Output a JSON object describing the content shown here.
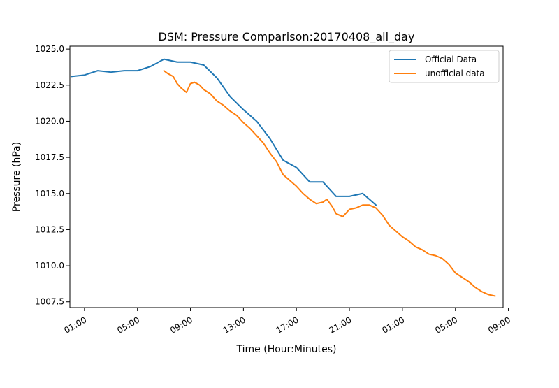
{
  "chart_data": {
    "type": "line",
    "title": "DSM: Pressure Comparison:20170408_all_day",
    "xlabel": "Time (Hour:Minutes)",
    "ylabel": "Pressure (hPa)",
    "xlim_hours": [
      -0.1,
      32.6
    ],
    "ylim": [
      1007.1,
      1025.2
    ],
    "x_ticks": [
      {
        "hour": 1,
        "label": "01:00"
      },
      {
        "hour": 5,
        "label": "05:00"
      },
      {
        "hour": 9,
        "label": "09:00"
      },
      {
        "hour": 13,
        "label": "13:00"
      },
      {
        "hour": 17,
        "label": "17:00"
      },
      {
        "hour": 21,
        "label": "21:00"
      },
      {
        "hour": 25,
        "label": "01:00"
      },
      {
        "hour": 29,
        "label": "05:00"
      },
      {
        "hour": 33,
        "label": "09:00"
      }
    ],
    "y_ticks": [
      {
        "value": 1025.0,
        "label": "1025.0"
      },
      {
        "value": 1022.5,
        "label": "1022.5"
      },
      {
        "value": 1020.0,
        "label": "1020.0"
      },
      {
        "value": 1017.5,
        "label": "1017.5"
      },
      {
        "value": 1015.0,
        "label": "1015.0"
      },
      {
        "value": 1012.5,
        "label": "1012.5"
      },
      {
        "value": 1010.0,
        "label": "1010.0"
      },
      {
        "value": 1007.5,
        "label": "1007.5"
      }
    ],
    "legend_position": "upper right",
    "grid": false,
    "series": [
      {
        "name": "Official Data",
        "color": "#1f77b4",
        "x": [
          0,
          1,
          2,
          3,
          4,
          5,
          6,
          7,
          8,
          9,
          10,
          11,
          12,
          13,
          14,
          15,
          16,
          17,
          18,
          19,
          20,
          21,
          22,
          23,
          24
        ],
        "y": [
          1023.1,
          1023.2,
          1023.5,
          1023.4,
          1023.5,
          1023.5,
          1023.8,
          1024.3,
          1024.1,
          1024.1,
          1023.9,
          1023.0,
          1021.7,
          1020.8,
          1020.0,
          1018.8,
          1017.3,
          1016.8,
          1015.8,
          1015.8,
          1014.8,
          1014.8,
          1015.0,
          1014.2,
          null
        ]
      },
      {
        "name": "unofficial data",
        "color": "#ff7f0e",
        "x": [
          7.0,
          7.3,
          7.7,
          8.0,
          8.3,
          8.7,
          9.0,
          9.3,
          9.7,
          10.0,
          10.5,
          11.0,
          11.5,
          12.0,
          12.5,
          13.0,
          13.5,
          14.0,
          14.5,
          15.0,
          15.5,
          16.0,
          16.5,
          17.0,
          17.5,
          18.0,
          18.5,
          19.0,
          19.3,
          19.7,
          20.0,
          20.5,
          21.0,
          21.5,
          22.0,
          22.5,
          23.0,
          23.5,
          24.0,
          24.5,
          25.0,
          25.5,
          26.0,
          26.5,
          27.0,
          27.5,
          28.0,
          28.5,
          29.0,
          29.5,
          30.0,
          30.5,
          31.0,
          31.5,
          32.0
        ],
        "y": [
          1023.5,
          1023.3,
          1023.1,
          1022.6,
          1022.3,
          1022.0,
          1022.6,
          1022.7,
          1022.5,
          1022.2,
          1021.9,
          1021.4,
          1021.1,
          1020.7,
          1020.4,
          1019.9,
          1019.5,
          1019.0,
          1018.5,
          1017.8,
          1017.2,
          1016.3,
          1015.9,
          1015.5,
          1015.0,
          1014.6,
          1014.3,
          1014.4,
          1014.6,
          1014.1,
          1013.6,
          1013.4,
          1013.9,
          1014.0,
          1014.2,
          1014.2,
          1014.0,
          1013.5,
          1012.8,
          1012.4,
          1012.0,
          1011.7,
          1011.3,
          1011.1,
          1010.8,
          1010.7,
          1010.5,
          1010.1,
          1009.5,
          1009.2,
          1008.9,
          1008.5,
          1008.2,
          1008.0,
          1007.9
        ]
      }
    ]
  }
}
